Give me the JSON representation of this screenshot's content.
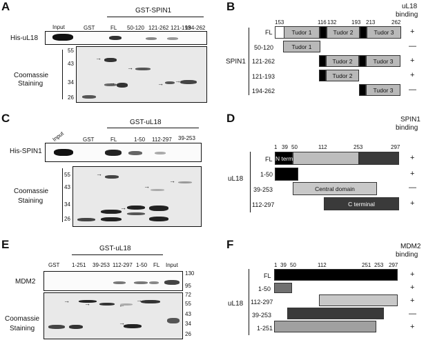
{
  "panels": {
    "A": {
      "letter": "A",
      "header": "GST-SPIN1",
      "lanes": [
        "Input",
        "GST",
        "FL",
        "50-120",
        "121-262",
        "121-193",
        "194-262"
      ],
      "blot_label": "His-uL18",
      "gel_label": [
        "Coomassie",
        "Staining"
      ],
      "mw": [
        "55",
        "43",
        "34",
        "26"
      ]
    },
    "B": {
      "letter": "B",
      "binding_title": [
        "uL18",
        "binding"
      ],
      "protein": "SPIN1",
      "numbers": [
        "153",
        "116",
        "132",
        "193",
        "213",
        "262"
      ],
      "rows": [
        {
          "label": "FL",
          "binding": "+"
        },
        {
          "label": "50-120",
          "binding": "—"
        },
        {
          "label": "121-262",
          "binding": "+"
        },
        {
          "label": "121-193",
          "binding": "+"
        },
        {
          "label": "194-262",
          "binding": "—"
        }
      ],
      "domains": [
        "Tudor 1",
        "Tudor 2",
        "Tudor 3"
      ]
    },
    "C": {
      "letter": "C",
      "header": "GST-uL18",
      "lanes": [
        "Input",
        "GST",
        "FL",
        "1-50",
        "112-297",
        "39-253"
      ],
      "blot_label": "His-SPIN1",
      "gel_label": [
        "Coomassie",
        "Staining"
      ],
      "mw": [
        "55",
        "43",
        "34",
        "26"
      ]
    },
    "D": {
      "letter": "D",
      "binding_title": [
        "SPIN1",
        "binding"
      ],
      "protein": "uL18",
      "numbers": [
        "1",
        "39",
        "50",
        "112",
        "253",
        "297"
      ],
      "rows": [
        {
          "label": "FL",
          "binding": "+"
        },
        {
          "label": "1-50",
          "binding": "+"
        },
        {
          "label": "39-253",
          "binding": "—"
        },
        {
          "label": "112-297",
          "binding": "+"
        }
      ],
      "domains": [
        "N terminal",
        "Central domain",
        "C terminal"
      ]
    },
    "E": {
      "letter": "E",
      "header": "GST-uL18",
      "lanes": [
        "GST",
        "1-251",
        "39-253",
        "112-297",
        "1-50",
        "FL",
        "Input"
      ],
      "blot_label": "MDM2",
      "gel_label": [
        "Coomassie",
        "Staining"
      ],
      "mw_blot": [
        "130",
        "95"
      ],
      "mw_gel": [
        "72",
        "55",
        "43",
        "34",
        "26"
      ]
    },
    "F": {
      "letter": "F",
      "binding_title": [
        "MDM2",
        "binding"
      ],
      "protein": "uL18",
      "numbers": [
        "1",
        "39",
        "50",
        "112",
        "251",
        "253",
        "297"
      ],
      "rows": [
        {
          "label": "FL",
          "binding": "+"
        },
        {
          "label": "1-50",
          "binding": "+"
        },
        {
          "label": "112-297",
          "binding": "+"
        },
        {
          "label": "39-253",
          "binding": "—"
        },
        {
          "label": "1-251",
          "binding": "+"
        }
      ]
    }
  },
  "colors": {
    "tudor": "#b9b9b9",
    "black": "#000000",
    "nterm": "#000000",
    "central": "#c8c8c8",
    "cterm": "#3a3a3a",
    "f_fl": "#000000",
    "f_150": "#707070",
    "f_112": "#c8c8c8",
    "f_39": "#3a3a3a",
    "f_1251": "#a0a0a0"
  }
}
